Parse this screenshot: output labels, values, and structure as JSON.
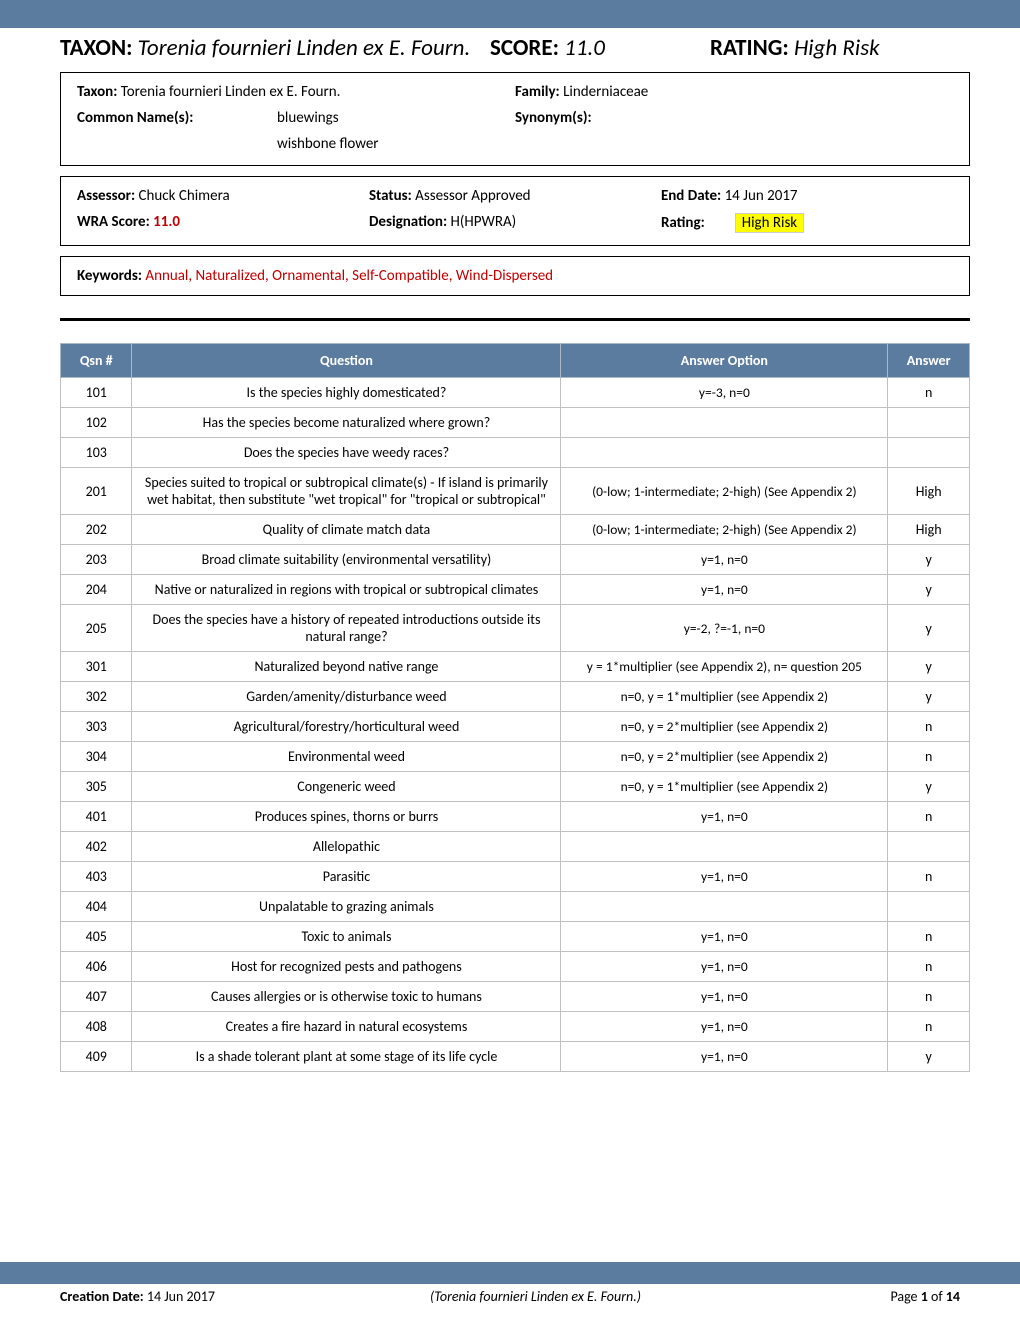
{
  "header": {
    "taxon_label": "TAXON:",
    "taxon_value": "Torenia fournieri Linden ex E. Fourn.",
    "score_label": "SCORE:",
    "score_value": "11.0",
    "rating_label": "RATING:",
    "rating_value": "High Risk"
  },
  "box1": {
    "taxon_label": "Taxon:",
    "taxon_value": "Torenia fournieri Linden ex E. Fourn.",
    "family_label": "Family:",
    "family_value": "Linderniaceae",
    "common_label": "Common Name(s):",
    "common_names": [
      "bluewings",
      "wishbone flower"
    ],
    "synonym_label": "Synonym(s):",
    "synonym_value": ""
  },
  "box2": {
    "assessor_label": "Assessor:",
    "assessor_value": "Chuck Chimera",
    "status_label": "Status:",
    "status_value": "Assessor Approved",
    "enddate_label": "End Date:",
    "enddate_value": "14 Jun 2017",
    "wra_label": "WRA Score:",
    "wra_value": "11.0",
    "designation_label": "Designation:",
    "designation_value": "H(HPWRA)",
    "rating_label": "Rating:",
    "rating_value": "High Risk"
  },
  "keywords": {
    "label": "Keywords:",
    "value": "Annual, Naturalized, Ornamental, Self-Compatible, Wind-Dispersed"
  },
  "table": {
    "headers": {
      "qsn": "Qsn #",
      "question": "Question",
      "option": "Answer Option",
      "answer": "Answer"
    },
    "rows": [
      {
        "q": "101",
        "question": "Is the species highly domesticated?",
        "option": "y=-3, n=0",
        "answer": "n"
      },
      {
        "q": "102",
        "question": "Has the species become naturalized where grown?",
        "option": "",
        "answer": ""
      },
      {
        "q": "103",
        "question": "Does the species have weedy races?",
        "option": "",
        "answer": ""
      },
      {
        "q": "201",
        "question": "Species suited to tropical or subtropical climate(s) - If island is primarily wet habitat, then substitute \"wet tropical\" for \"tropical or subtropical\"",
        "option": "(0-low; 1-intermediate; 2-high)  (See Appendix 2)",
        "answer": "High"
      },
      {
        "q": "202",
        "question": "Quality of climate match data",
        "option": "(0-low; 1-intermediate; 2-high)  (See Appendix 2)",
        "answer": "High"
      },
      {
        "q": "203",
        "question": "Broad climate suitability (environmental versatility)",
        "option": "y=1, n=0",
        "answer": "y"
      },
      {
        "q": "204",
        "question": "Native or naturalized in regions with tropical or subtropical climates",
        "option": "y=1, n=0",
        "answer": "y"
      },
      {
        "q": "205",
        "question": "Does the species have a history of repeated introductions outside its natural range?",
        "option": "y=-2, ?=-1, n=0",
        "answer": "y"
      },
      {
        "q": "301",
        "question": "Naturalized beyond native range",
        "option": "y = 1*multiplier (see Appendix 2), n= question 205",
        "answer": "y"
      },
      {
        "q": "302",
        "question": "Garden/amenity/disturbance weed",
        "option": "n=0, y = 1*multiplier (see Appendix 2)",
        "answer": "y"
      },
      {
        "q": "303",
        "question": "Agricultural/forestry/horticultural weed",
        "option": "n=0, y = 2*multiplier (see Appendix 2)",
        "answer": "n"
      },
      {
        "q": "304",
        "question": "Environmental weed",
        "option": "n=0, y = 2*multiplier (see Appendix 2)",
        "answer": "n"
      },
      {
        "q": "305",
        "question": "Congeneric weed",
        "option": "n=0, y = 1*multiplier (see Appendix 2)",
        "answer": "y"
      },
      {
        "q": "401",
        "question": "Produces spines, thorns or burrs",
        "option": "y=1, n=0",
        "answer": "n"
      },
      {
        "q": "402",
        "question": "Allelopathic",
        "option": "",
        "answer": ""
      },
      {
        "q": "403",
        "question": "Parasitic",
        "option": "y=1, n=0",
        "answer": "n"
      },
      {
        "q": "404",
        "question": "Unpalatable to grazing animals",
        "option": "",
        "answer": ""
      },
      {
        "q": "405",
        "question": "Toxic to animals",
        "option": "y=1, n=0",
        "answer": "n"
      },
      {
        "q": "406",
        "question": "Host for recognized pests and pathogens",
        "option": "y=1, n=0",
        "answer": "n"
      },
      {
        "q": "407",
        "question": "Causes allergies or is otherwise toxic to humans",
        "option": "y=1, n=0",
        "answer": "n"
      },
      {
        "q": "408",
        "question": "Creates a fire hazard in natural ecosystems",
        "option": "y=1, n=0",
        "answer": "n"
      },
      {
        "q": "409",
        "question": "Is a shade tolerant plant at some stage of its life cycle",
        "option": "y=1, n=0",
        "answer": "y"
      }
    ]
  },
  "footer": {
    "creation_label": "Creation Date:",
    "creation_value": "14 Jun 2017",
    "center": "(Torenia fournieri Linden ex E. Fourn.)",
    "page_label": "Page",
    "page_current": "1",
    "page_of": "of",
    "page_total": "14"
  }
}
